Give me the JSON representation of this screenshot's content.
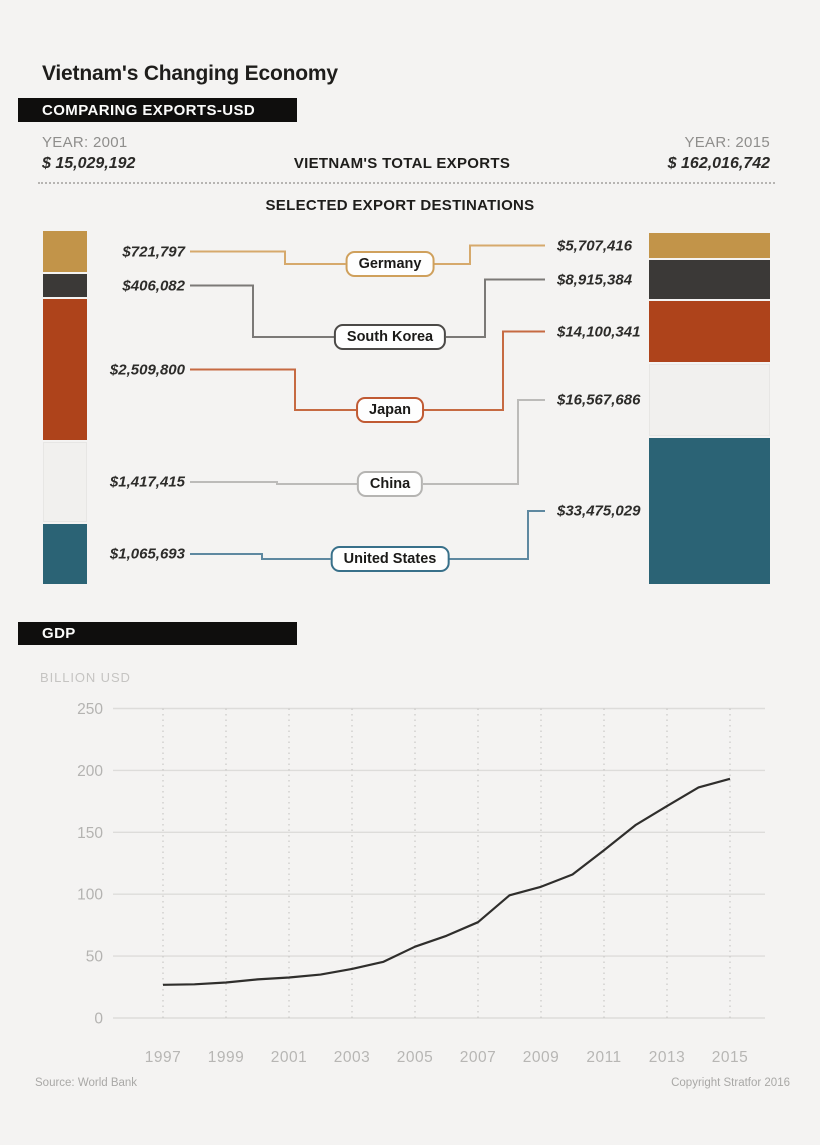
{
  "page": {
    "title": "Vietnam's Changing Economy",
    "source": "Source: World Bank",
    "copyright": "Copyright Stratfor 2016"
  },
  "chart_data": [
    {
      "type": "slopegraph-stacked-bars",
      "title": "VIETNAM'S TOTAL EXPORTS",
      "subtitle": "SELECTED EXPORT DESTINATIONS",
      "section_label": "COMPARING EXPORTS-USD",
      "unit": "USD",
      "columns": [
        {
          "year_label": "YEAR: 2001",
          "total_label": "$ 15,029,192",
          "total_value": 15029192
        },
        {
          "year_label": "YEAR: 2015",
          "total_label": "$ 162,016,742",
          "total_value": 162016742
        }
      ],
      "countries": [
        {
          "name": "Germany",
          "v2001": 721797,
          "v2015": 5707416,
          "label_2001": "$721,797",
          "label_2015": "$5,707,416",
          "bar_color": "#c29449",
          "line_color": "#d6a96c",
          "pill_border": "#cfa05c"
        },
        {
          "name": "South Korea",
          "v2001": 406082,
          "v2015": 8915384,
          "label_2001": "$406,082",
          "label_2015": "$8,915,384",
          "bar_color": "#3b3937",
          "line_color": "#7b7977",
          "pill_border": "#4b4947"
        },
        {
          "name": "Japan",
          "v2001": 2509800,
          "v2015": 14100341,
          "label_2001": "$2,509,800",
          "label_2015": "$14,100,341",
          "bar_color": "#ae431b",
          "line_color": "#c66a42",
          "pill_border": "#c05a33"
        },
        {
          "name": "China",
          "v2001": 1417415,
          "v2015": 16567686,
          "label_2001": "$1,417,415",
          "label_2015": "$16,567,686",
          "bar_color": "#f1f0ee",
          "line_color": "#bcbbb9",
          "pill_border": "#b5b4b2"
        },
        {
          "name": "United States",
          "v2001": 1065693,
          "v2015": 33475029,
          "label_2001": "$1,065,693",
          "label_2015": "$33,475,029",
          "bar_color": "#2b6375",
          "line_color": "#5e88a0",
          "pill_border": "#38708a"
        }
      ]
    },
    {
      "type": "line",
      "title": "GDP",
      "ylabel": "BILLION USD",
      "x": [
        1997,
        1998,
        1999,
        2000,
        2001,
        2002,
        2003,
        2004,
        2005,
        2006,
        2007,
        2008,
        2009,
        2010,
        2011,
        2012,
        2013,
        2014,
        2015
      ],
      "values": [
        26.8,
        27.2,
        28.7,
        31.2,
        32.7,
        35.1,
        39.6,
        45.4,
        57.6,
        66.4,
        77.4,
        99.1,
        106.0,
        115.9,
        135.5,
        155.8,
        171.2,
        186.2,
        193.2
      ],
      "xticks": [
        1997,
        1999,
        2001,
        2003,
        2005,
        2007,
        2009,
        2011,
        2013,
        2015
      ],
      "yticks": [
        0,
        50,
        100,
        150,
        200,
        250
      ],
      "ylim": [
        0,
        250
      ],
      "line_color": "#2f2e2c",
      "grid": {
        "horizontal": "solid",
        "vertical": "dotted"
      },
      "legend": "none"
    }
  ]
}
